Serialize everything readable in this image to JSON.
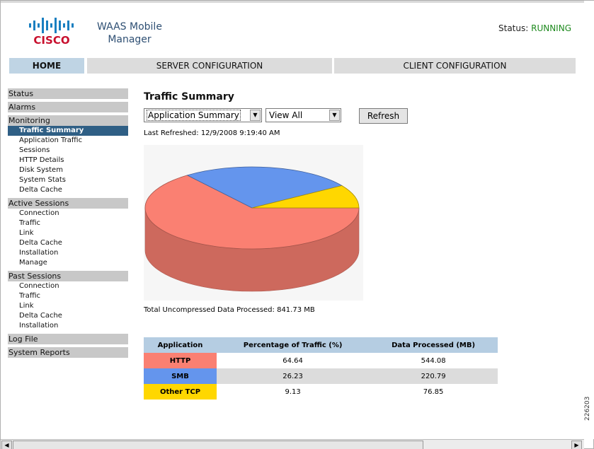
{
  "header": {
    "logo_text": "CISCO",
    "app_title_line1": "WAAS Mobile",
    "app_title_line2": "Manager",
    "status_label": "Status:",
    "status_value": "RUNNING"
  },
  "topnav": {
    "home": "HOME",
    "server": "SERVER CONFIGURATION",
    "client": "CLIENT CONFIGURATION"
  },
  "sidebar": {
    "status": "Status",
    "alarms": "Alarms",
    "monitoring": {
      "label": "Monitoring",
      "items": [
        "Traffic Summary",
        "Application Traffic",
        "Sessions",
        "HTTP Details",
        "Disk System",
        "System Stats",
        "Delta Cache"
      ]
    },
    "active_sessions": {
      "label": "Active Sessions",
      "items": [
        "Connection",
        "Traffic",
        "Link",
        "Delta Cache",
        "Installation",
        "Manage"
      ]
    },
    "past_sessions": {
      "label": "Past Sessions",
      "items": [
        "Connection",
        "Traffic",
        "Link",
        "Delta Cache",
        "Installation"
      ]
    },
    "log_file": "Log File",
    "system_reports": "System Reports"
  },
  "main": {
    "title": "Traffic Summary",
    "select_app": "Application Summary",
    "select_view": "View All",
    "refresh": "Refresh",
    "last_refreshed": "Last Refreshed: 12/9/2008 9:19:40 AM",
    "total": "Total Uncompressed Data Processed: 841.73 MB"
  },
  "table": {
    "headers": [
      "Application",
      "Percentage of Traffic (%)",
      "Data Processed (MB)"
    ],
    "rows": [
      {
        "app": "HTTP",
        "pct": "64.64",
        "mb": "544.08",
        "color": "#fa8072"
      },
      {
        "app": "SMB",
        "pct": "26.23",
        "mb": "220.79",
        "color": "#6495ed"
      },
      {
        "app": "Other TCP",
        "pct": "9.13",
        "mb": "76.85",
        "color": "#ffd700"
      }
    ]
  },
  "chart_data": {
    "type": "pie",
    "categories": [
      "HTTP",
      "SMB",
      "Other TCP"
    ],
    "values": [
      64.64,
      26.23,
      9.13
    ],
    "colors": [
      "#fa8072",
      "#6495ed",
      "#ffd700"
    ]
  },
  "footer": {
    "figure_id": "226203"
  }
}
